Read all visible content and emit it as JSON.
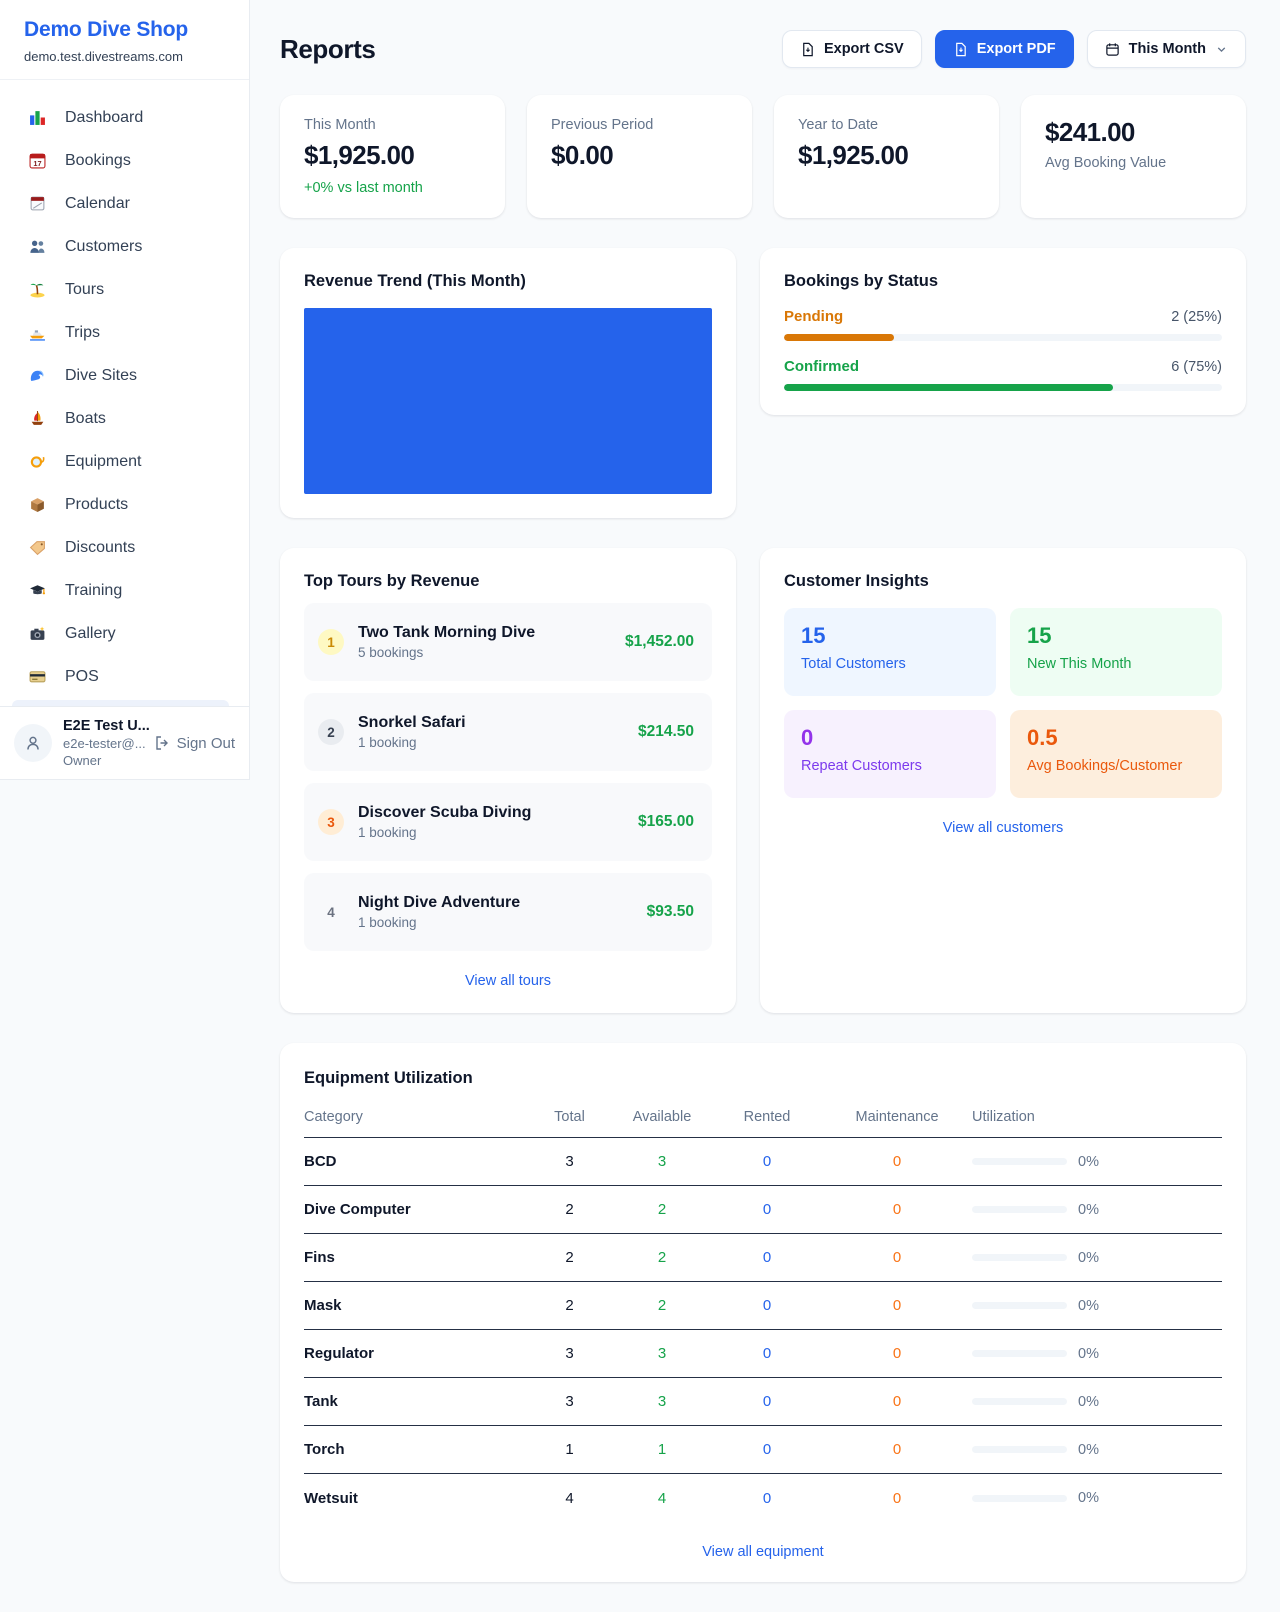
{
  "brand": {
    "name": "Demo Dive Shop",
    "domain": "demo.test.divestreams.com"
  },
  "sidebar": {
    "items": [
      {
        "label": "Dashboard",
        "icon": "bar-chart"
      },
      {
        "label": "Bookings",
        "icon": "calendar-17"
      },
      {
        "label": "Calendar",
        "icon": "spiral-calendar"
      },
      {
        "label": "Customers",
        "icon": "two-people"
      },
      {
        "label": "Tours",
        "icon": "desert-island"
      },
      {
        "label": "Trips",
        "icon": "speedboat"
      },
      {
        "label": "Dive Sites",
        "icon": "wave"
      },
      {
        "label": "Boats",
        "icon": "sailboat"
      },
      {
        "label": "Equipment",
        "icon": "diving-mask"
      },
      {
        "label": "Products",
        "icon": "package-box"
      },
      {
        "label": "Discounts",
        "icon": "price-tag"
      },
      {
        "label": "Training",
        "icon": "graduation-cap"
      },
      {
        "label": "Gallery",
        "icon": "camera-flash"
      },
      {
        "label": "POS",
        "icon": "credit-card"
      }
    ],
    "user": {
      "name": "E2E Test U...",
      "email": "e2e-tester@...",
      "role": "Owner",
      "sign_out": "Sign Out"
    }
  },
  "header": {
    "title": "Reports",
    "export_csv": "Export CSV",
    "export_pdf": "Export PDF",
    "period": "This Month"
  },
  "stats": {
    "cards": [
      {
        "label": "This Month",
        "value": "$1,925.00",
        "delta": "+0% vs last month"
      },
      {
        "label": "Previous Period",
        "value": "$0.00"
      },
      {
        "label": "Year to Date",
        "value": "$1,925.00"
      },
      {
        "label": "Avg Booking Value",
        "value": "$241.00"
      }
    ]
  },
  "revenue_trend": {
    "title": "Revenue Trend (This Month)",
    "chart_color": "#2563eb"
  },
  "bookings_by_status": {
    "title": "Bookings by Status",
    "rows": [
      {
        "label": "Pending",
        "value": "2 (25%)",
        "pct": 25,
        "color": "#d97706"
      },
      {
        "label": "Confirmed",
        "value": "6 (75%)",
        "pct": 75,
        "color": "#16a34a"
      }
    ]
  },
  "top_tours": {
    "title": "Top Tours by Revenue",
    "rows": [
      {
        "rank": "1",
        "name": "Two Tank Morning Dive",
        "bookings": "5 bookings",
        "amount": "$1,452.00"
      },
      {
        "rank": "2",
        "name": "Snorkel Safari",
        "bookings": "1 booking",
        "amount": "$214.50"
      },
      {
        "rank": "3",
        "name": "Discover Scuba Diving",
        "bookings": "1 booking",
        "amount": "$165.00"
      },
      {
        "rank": "4",
        "name": "Night Dive Adventure",
        "bookings": "1 booking",
        "amount": "$93.50"
      }
    ],
    "view_all": "View all tours"
  },
  "customer_insights": {
    "title": "Customer Insights",
    "tiles": [
      {
        "value": "15",
        "label": "Total Customers",
        "color": "#2563eb"
      },
      {
        "value": "15",
        "label": "New This Month",
        "color": "#16a34a"
      },
      {
        "value": "0",
        "label": "Repeat Customers",
        "color": "#9333ea"
      },
      {
        "value": "0.5",
        "label": "Avg Bookings/Customer",
        "color": "#ea580c"
      }
    ],
    "view_all": "View all customers"
  },
  "equipment": {
    "title": "Equipment Utilization",
    "columns": [
      "Category",
      "Total",
      "Available",
      "Rented",
      "Maintenance",
      "Utilization"
    ],
    "rows": [
      {
        "category": "BCD",
        "total": "3",
        "available": "3",
        "rented": "0",
        "maintenance": "0",
        "utilization": "0%",
        "utilization_pct": 0
      },
      {
        "category": "Dive Computer",
        "total": "2",
        "available": "2",
        "rented": "0",
        "maintenance": "0",
        "utilization": "0%",
        "utilization_pct": 0
      },
      {
        "category": "Fins",
        "total": "2",
        "available": "2",
        "rented": "0",
        "maintenance": "0",
        "utilization": "0%",
        "utilization_pct": 0
      },
      {
        "category": "Mask",
        "total": "2",
        "available": "2",
        "rented": "0",
        "maintenance": "0",
        "utilization": "0%",
        "utilization_pct": 0
      },
      {
        "category": "Regulator",
        "total": "3",
        "available": "3",
        "rented": "0",
        "maintenance": "0",
        "utilization": "0%",
        "utilization_pct": 0
      },
      {
        "category": "Tank",
        "total": "3",
        "available": "3",
        "rented": "0",
        "maintenance": "0",
        "utilization": "0%",
        "utilization_pct": 0
      },
      {
        "category": "Torch",
        "total": "1",
        "available": "1",
        "rented": "0",
        "maintenance": "0",
        "utilization": "0%",
        "utilization_pct": 0
      },
      {
        "category": "Wetsuit",
        "total": "4",
        "available": "4",
        "rented": "0",
        "maintenance": "0",
        "utilization": "0%",
        "utilization_pct": 0
      }
    ],
    "view_all": "View all equipment"
  }
}
